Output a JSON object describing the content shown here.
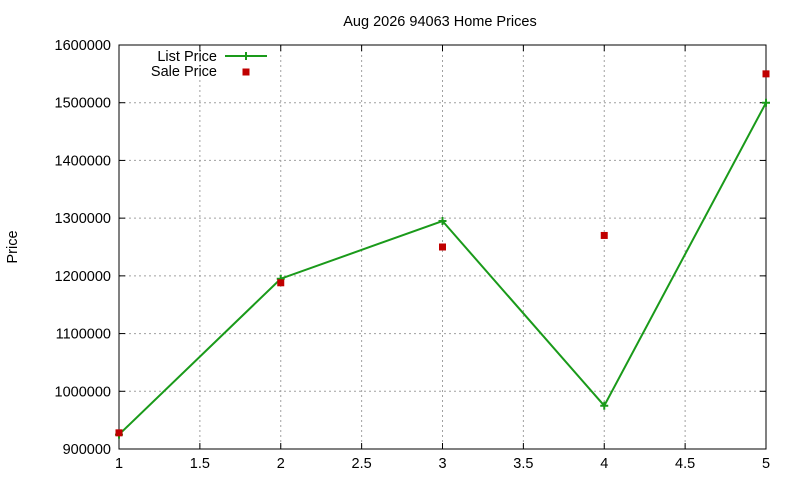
{
  "chart_data": {
    "type": "line",
    "title": "Aug 2026 94063 Home Prices",
    "xlabel": "",
    "ylabel": "Price",
    "xlim": [
      1,
      5
    ],
    "ylim": [
      900000,
      1600000
    ],
    "xticks": [
      1,
      1.5,
      2,
      2.5,
      3,
      3.5,
      4,
      4.5,
      5
    ],
    "xtick_labels": [
      "1",
      "1.5",
      "2",
      "2.5",
      "3",
      "3.5",
      "4",
      "4.5",
      "5"
    ],
    "yticks": [
      900000,
      1000000,
      1100000,
      1200000,
      1300000,
      1400000,
      1500000,
      1600000
    ],
    "ytick_labels": [
      "900000",
      "1000000",
      "1100000",
      "1200000",
      "1300000",
      "1400000",
      "1500000",
      "1600000"
    ],
    "grid": true,
    "legend_position": "top-left",
    "series": [
      {
        "name": "List Price",
        "style": "line with plus markers",
        "color": "#1a9a1a",
        "x": [
          1,
          2,
          3,
          4,
          5
        ],
        "y": [
          925000,
          1195000,
          1295000,
          975000,
          1500000
        ]
      },
      {
        "name": "Sale Price",
        "style": "square markers",
        "color": "#c00000",
        "x": [
          1,
          2,
          3,
          4,
          5
        ],
        "y": [
          928000,
          1188000,
          1250000,
          1270000,
          1550000
        ]
      }
    ]
  }
}
